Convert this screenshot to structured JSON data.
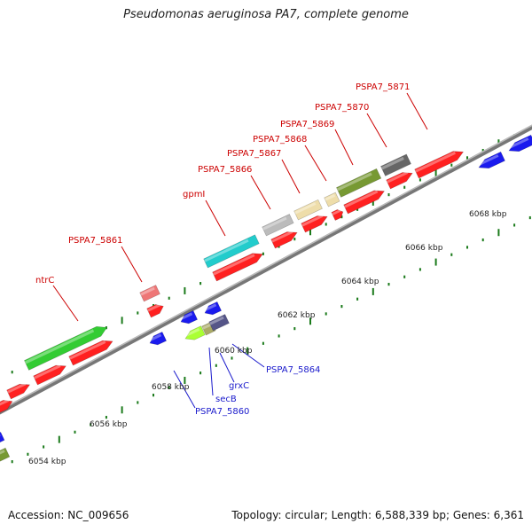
{
  "title": "Pseudomonas aeruginosa PA7, complete genome",
  "footer": {
    "accession": "Accession: NC_009656",
    "summary": "Topology: circular; Length: 6,588,339 bp; Genes: 6,361"
  },
  "scale_labels": [
    "6054 kbp",
    "6056 kbp",
    "6058 kbp",
    "6060 kbp",
    "6062 kbp",
    "6064 kbp",
    "6066 kbp",
    "6068 kbp"
  ],
  "gene_labels_top": [
    "ntrC",
    "PSPA7_5861",
    "gpmI",
    "PSPA7_5866",
    "PSPA7_5867",
    "PSPA7_5868",
    "PSPA7_5869",
    "PSPA7_5870",
    "PSPA7_5871"
  ],
  "gene_labels_bottom": [
    "PSPA7_5864",
    "grxC",
    "secB",
    "PSPA7_5860"
  ],
  "colors": {
    "forward_cds": "#ff2020",
    "reverse_cds": "#1a1aee",
    "top_label": "#cc0000",
    "bottom_label": "#1a1acc",
    "backbone": "#888888",
    "tick": "#1a7a1a"
  }
}
